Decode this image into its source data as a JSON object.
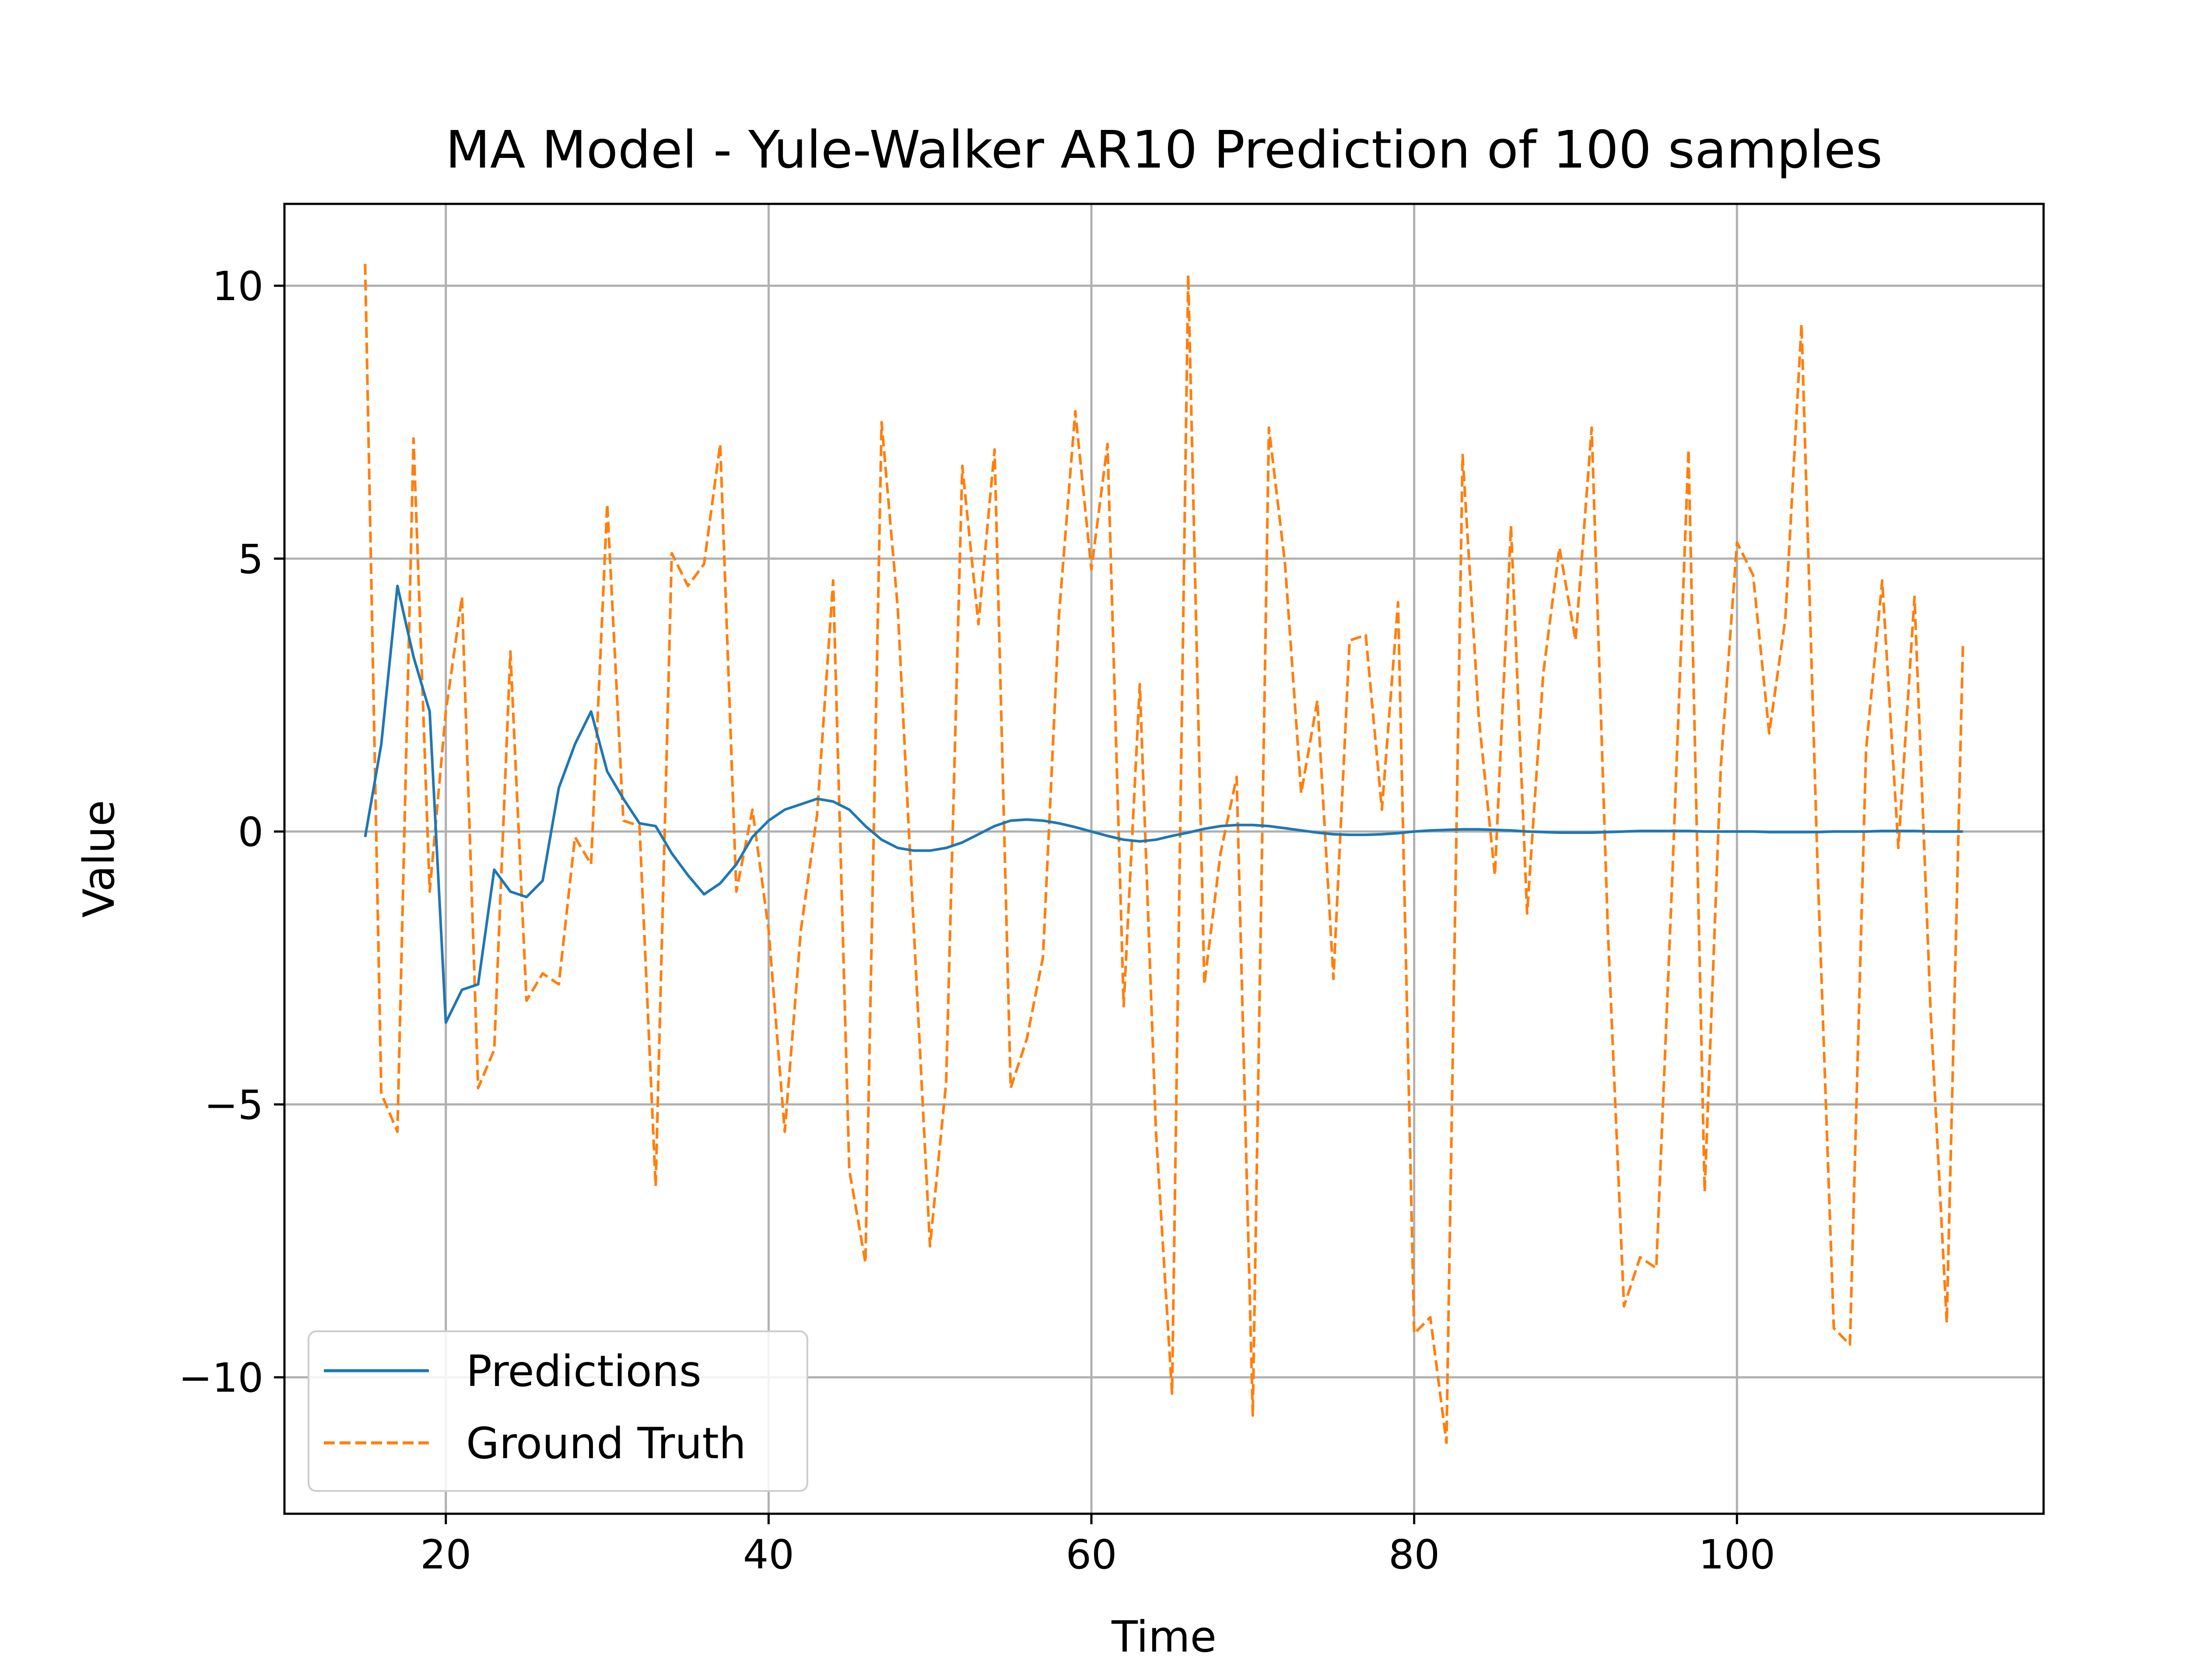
{
  "chart_data": {
    "type": "line",
    "title": "MA Model - Yule-Walker AR10 Prediction of 100 samples",
    "xlabel": "Time",
    "ylabel": "Value",
    "xlim": [
      10,
      119
    ],
    "ylim": [
      -12.5,
      11.5
    ],
    "xticks": [
      20,
      40,
      60,
      80,
      100
    ],
    "yticks": [
      10,
      5,
      0,
      -5,
      -10
    ],
    "xtick_labels": [
      "20",
      "40",
      "60",
      "80",
      "100"
    ],
    "ytick_labels": [
      "10",
      "5",
      "0",
      "−5",
      "−10"
    ],
    "grid": true,
    "legend_position": "lower-left",
    "x": [
      15,
      16,
      17,
      18,
      19,
      20,
      21,
      22,
      23,
      24,
      25,
      26,
      27,
      28,
      29,
      30,
      31,
      32,
      33,
      34,
      35,
      36,
      37,
      38,
      39,
      40,
      41,
      42,
      43,
      44,
      45,
      46,
      47,
      48,
      49,
      50,
      51,
      52,
      53,
      54,
      55,
      56,
      57,
      58,
      59,
      60,
      61,
      62,
      63,
      64,
      65,
      66,
      67,
      68,
      69,
      70,
      71,
      72,
      73,
      74,
      75,
      76,
      77,
      78,
      79,
      80,
      81,
      82,
      83,
      84,
      85,
      86,
      87,
      88,
      89,
      90,
      91,
      92,
      93,
      94,
      95,
      96,
      97,
      98,
      99,
      100,
      101,
      102,
      103,
      104,
      105,
      106,
      107,
      108,
      109,
      110,
      111,
      112,
      113,
      114
    ],
    "series": [
      {
        "name": "Predictions",
        "color": "#1f77b4",
        "style": "solid",
        "values": [
          -0.1,
          1.6,
          4.5,
          3.2,
          2.2,
          -3.5,
          -2.9,
          -2.8,
          -0.7,
          -1.1,
          -1.2,
          -0.9,
          0.8,
          1.6,
          2.2,
          1.1,
          0.6,
          0.15,
          0.1,
          -0.4,
          -0.8,
          -1.15,
          -0.95,
          -0.6,
          -0.1,
          0.2,
          0.4,
          0.5,
          0.6,
          0.55,
          0.4,
          0.1,
          -0.15,
          -0.3,
          -0.35,
          -0.35,
          -0.3,
          -0.2,
          -0.05,
          0.1,
          0.2,
          0.22,
          0.2,
          0.15,
          0.08,
          0.0,
          -0.08,
          -0.15,
          -0.18,
          -0.15,
          -0.08,
          -0.02,
          0.05,
          0.1,
          0.12,
          0.12,
          0.1,
          0.06,
          0.02,
          -0.02,
          -0.05,
          -0.06,
          -0.06,
          -0.05,
          -0.03,
          0.0,
          0.02,
          0.03,
          0.04,
          0.04,
          0.03,
          0.02,
          0.0,
          -0.01,
          -0.02,
          -0.02,
          -0.02,
          -0.01,
          0.0,
          0.01,
          0.01,
          0.01,
          0.01,
          0.0,
          0.0,
          0.0,
          0.0,
          -0.01,
          -0.01,
          -0.01,
          -0.01,
          0.0,
          0.0,
          0.0,
          0.01,
          0.01,
          0.01,
          0.0,
          0.0,
          0.0
        ]
      },
      {
        "name": "Ground Truth",
        "color": "#ff7f0e",
        "style": "dashed",
        "values": [
          10.4,
          -4.8,
          -5.5,
          7.2,
          -1.1,
          2.2,
          4.3,
          -4.7,
          -4.0,
          3.3,
          -3.1,
          -2.6,
          -2.8,
          -0.1,
          -0.6,
          6.0,
          0.2,
          0.1,
          -6.5,
          5.1,
          4.5,
          4.9,
          7.1,
          -1.1,
          0.4,
          -1.8,
          -5.5,
          -1.8,
          0.3,
          4.6,
          -6.2,
          -7.9,
          7.5,
          4.1,
          -1.8,
          -7.6,
          -4.6,
          6.7,
          3.8,
          7.0,
          -4.7,
          -3.8,
          -2.3,
          4.0,
          7.7,
          4.8,
          7.1,
          -3.2,
          2.7,
          -5.5,
          -10.3,
          10.2,
          -2.8,
          -0.4,
          1.0,
          -10.7,
          7.4,
          4.9,
          0.7,
          2.4,
          -2.7,
          3.5,
          3.6,
          0.4,
          4.2,
          -9.2,
          -8.9,
          -11.2,
          6.9,
          2.1,
          -0.8,
          5.6,
          -1.5,
          2.9,
          5.2,
          3.5,
          7.4,
          -1.8,
          -8.7,
          -7.8,
          -8.0,
          -0.8,
          7.0,
          -6.6,
          1.2,
          5.3,
          4.7,
          1.8,
          3.9,
          9.3,
          -0.7,
          -9.1,
          -9.4,
          1.5,
          4.6,
          -0.3,
          4.3,
          -3.3,
          -9.0,
          3.4
        ]
      }
    ]
  }
}
